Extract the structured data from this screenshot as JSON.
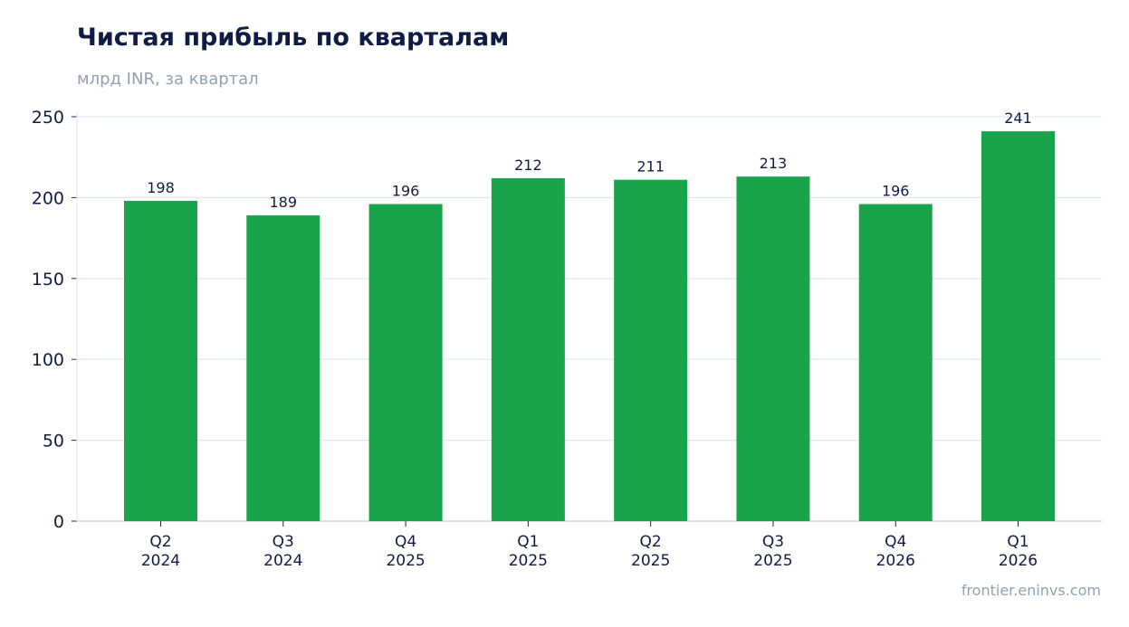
{
  "header": {
    "title": "Чистая прибыль по кварталам",
    "subtitle": "млрд INR, за квартал"
  },
  "footer": {
    "source": "frontier.eninvs.com"
  },
  "colors": {
    "bar": "#19a34a",
    "grid": "#e1e7ef",
    "axis": "#c9d2dd",
    "text": "#0f1c45",
    "muted": "#8fa1b3"
  },
  "chart_data": {
    "type": "bar",
    "categories": [
      [
        "Q2",
        "2024"
      ],
      [
        "Q3",
        "2024"
      ],
      [
        "Q4",
        "2025"
      ],
      [
        "Q1",
        "2025"
      ],
      [
        "Q2",
        "2025"
      ],
      [
        "Q3",
        "2025"
      ],
      [
        "Q4",
        "2026"
      ],
      [
        "Q1",
        "2026"
      ]
    ],
    "values": [
      198,
      189,
      196,
      212,
      211,
      213,
      196,
      241
    ],
    "ylim": [
      0,
      250
    ],
    "yticks": [
      0,
      50,
      100,
      150,
      200,
      250
    ],
    "grid": true,
    "data_labels": true
  }
}
